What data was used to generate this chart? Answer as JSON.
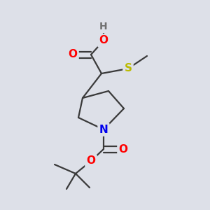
{
  "background_color": "#dde0e8",
  "bond_color": "#3a3a3a",
  "atom_colors": {
    "O": "#ff0000",
    "N": "#0000ee",
    "S": "#bbbb00",
    "H": "#707070",
    "C": "#3a3a3a"
  },
  "font_size_atom": 11,
  "fig_size": [
    3.0,
    3.0
  ],
  "dpi": 100
}
